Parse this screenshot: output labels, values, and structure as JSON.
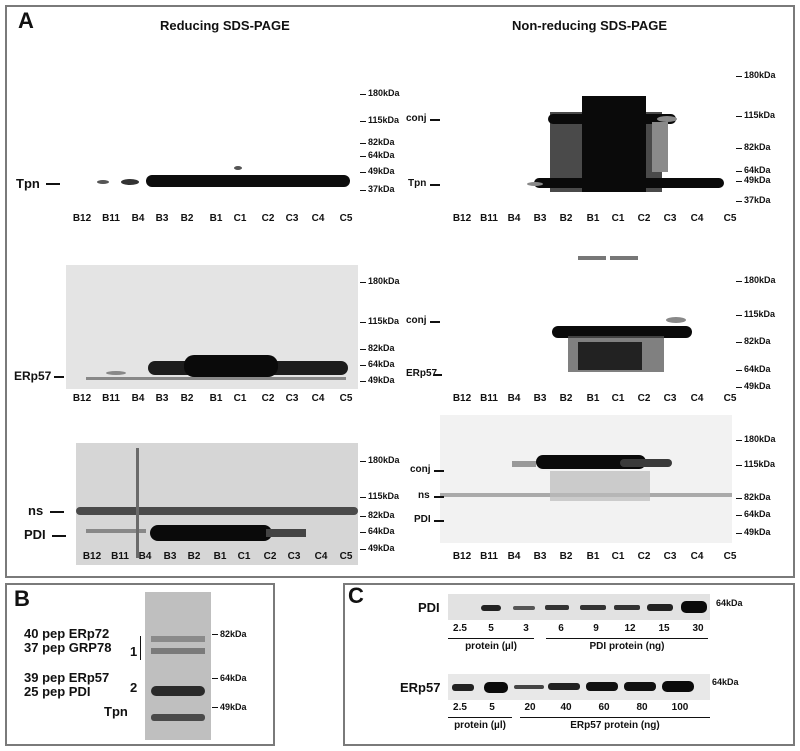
{
  "panel_a": {
    "letter": "A",
    "title_reducing": "Reducing SDS-PAGE",
    "title_nonreducing": "Non-reducing SDS-PAGE",
    "lanes": [
      "B12",
      "B11",
      "B4",
      "B3",
      "B2",
      "B1",
      "C1",
      "C2",
      "C3",
      "C4",
      "C5"
    ],
    "markers": {
      "kda180": "180kDa",
      "kda115": "115kDa",
      "kda82": "82kDa",
      "kda64": "64kDa",
      "kda49": "49kDa",
      "kda37": "37kDa"
    },
    "labels": {
      "tpn": "Tpn",
      "erp57": "ERp57",
      "ns": "ns",
      "pdi": "PDI",
      "conj": "conj"
    }
  },
  "panel_b": {
    "letter": "B",
    "lines": [
      "40 pep ERp72",
      "37 pep GRP78",
      "39 pep ERp57",
      "25 pep PDI"
    ],
    "band_1": "1",
    "band_2": "2",
    "tpn": "Tpn",
    "markers": [
      "82kDa",
      "64kDa",
      "49kDa"
    ]
  },
  "panel_c": {
    "letter": "C",
    "pdi_label": "PDI",
    "erp57_label": "ERp57",
    "marker": "64kDa",
    "pdi_values": [
      "2.5",
      "5",
      "3",
      "6",
      "9",
      "12",
      "15",
      "30"
    ],
    "erp57_values": [
      "2.5",
      "5",
      "20",
      "40",
      "60",
      "80",
      "100"
    ],
    "protein_ul": "protein (µl)",
    "pdi_ng": "PDI protein (ng)",
    "erp57_ng": "ERp57 protein (ng)"
  },
  "colors": {
    "frame": "#7a7a7a",
    "band": "#0d0d0d",
    "gel_bg": "#e6e6e6"
  }
}
